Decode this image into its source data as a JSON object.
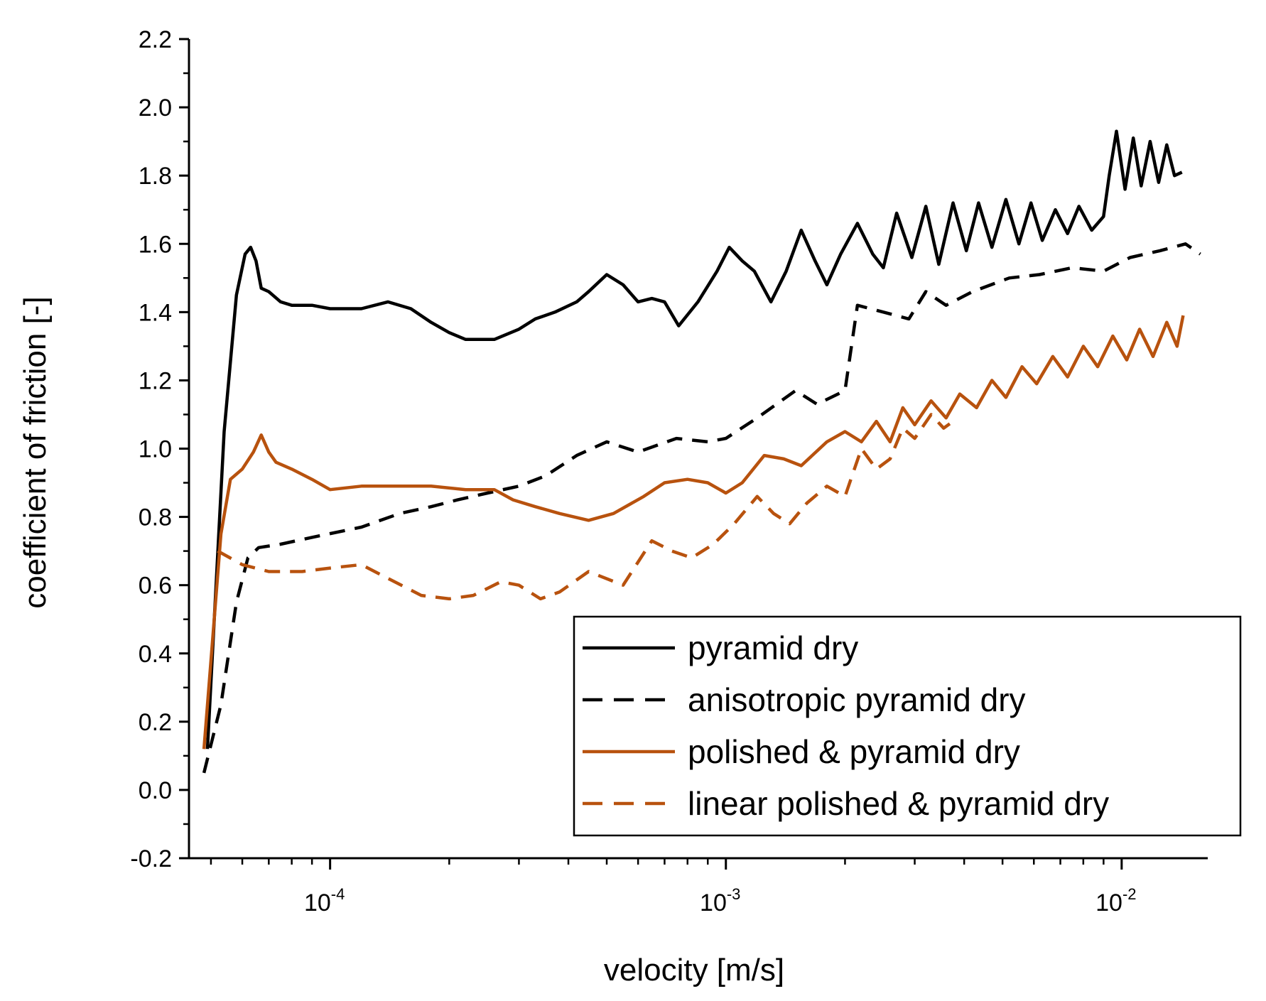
{
  "chart_data": {
    "type": "line",
    "title": "",
    "xlabel": "velocity [m/s]",
    "ylabel": "coefficient of friction [-]",
    "xscale": "log",
    "xlim": [
      4.4e-05,
      0.0165
    ],
    "ylim": [
      -0.2,
      2.2
    ],
    "yticks": [
      "-0.2",
      "0.0",
      "0.2",
      "0.4",
      "0.6",
      "0.8",
      "1.0",
      "1.2",
      "1.4",
      "1.6",
      "1.8",
      "2.0",
      "2.2"
    ],
    "xticks": [
      {
        "value": 0.0001,
        "base": "10",
        "exp": "-4"
      },
      {
        "value": 0.001,
        "base": "10",
        "exp": "-3"
      },
      {
        "value": 0.01,
        "base": "10",
        "exp": "-2"
      }
    ],
    "legend_position": "bottom-right",
    "series": [
      {
        "name": "pyramid dry",
        "color": "#000000",
        "dash": "solid",
        "points": [
          [
            4.9e-05,
            0.12
          ],
          [
            5.4e-05,
            1.05
          ],
          [
            5.8e-05,
            1.45
          ],
          [
            6.1e-05,
            1.57
          ],
          [
            6.3e-05,
            1.59
          ],
          [
            6.5e-05,
            1.55
          ],
          [
            6.7e-05,
            1.47
          ],
          [
            7e-05,
            1.46
          ],
          [
            7.5e-05,
            1.43
          ],
          [
            8e-05,
            1.42
          ],
          [
            9e-05,
            1.42
          ],
          [
            0.0001,
            1.41
          ],
          [
            0.00012,
            1.41
          ],
          [
            0.00014,
            1.43
          ],
          [
            0.00016,
            1.41
          ],
          [
            0.00018,
            1.37
          ],
          [
            0.0002,
            1.34
          ],
          [
            0.00022,
            1.32
          ],
          [
            0.00026,
            1.32
          ],
          [
            0.0003,
            1.35
          ],
          [
            0.00033,
            1.38
          ],
          [
            0.00037,
            1.4
          ],
          [
            0.00042,
            1.43
          ],
          [
            0.00045,
            1.46
          ],
          [
            0.0005,
            1.51
          ],
          [
            0.00055,
            1.48
          ],
          [
            0.0006,
            1.43
          ],
          [
            0.00065,
            1.44
          ],
          [
            0.0007,
            1.43
          ],
          [
            0.00076,
            1.36
          ],
          [
            0.00085,
            1.43
          ],
          [
            0.00095,
            1.52
          ],
          [
            0.00102,
            1.59
          ],
          [
            0.0011,
            1.55
          ],
          [
            0.00118,
            1.52
          ],
          [
            0.0013,
            1.43
          ],
          [
            0.00142,
            1.52
          ],
          [
            0.00155,
            1.64
          ],
          [
            0.00168,
            1.55
          ],
          [
            0.0018,
            1.48
          ],
          [
            0.00195,
            1.57
          ],
          [
            0.00215,
            1.66
          ],
          [
            0.00235,
            1.57
          ],
          [
            0.0025,
            1.53
          ],
          [
            0.0027,
            1.69
          ],
          [
            0.00295,
            1.56
          ],
          [
            0.0032,
            1.71
          ],
          [
            0.00345,
            1.54
          ],
          [
            0.00375,
            1.72
          ],
          [
            0.00405,
            1.58
          ],
          [
            0.00435,
            1.72
          ],
          [
            0.0047,
            1.59
          ],
          [
            0.0051,
            1.73
          ],
          [
            0.0055,
            1.6
          ],
          [
            0.0059,
            1.72
          ],
          [
            0.0063,
            1.61
          ],
          [
            0.0068,
            1.7
          ],
          [
            0.0073,
            1.63
          ],
          [
            0.0078,
            1.71
          ],
          [
            0.0084,
            1.64
          ],
          [
            0.009,
            1.68
          ],
          [
            0.0093,
            1.8
          ],
          [
            0.0097,
            1.93
          ],
          [
            0.0102,
            1.76
          ],
          [
            0.0107,
            1.91
          ],
          [
            0.0112,
            1.77
          ],
          [
            0.0118,
            1.9
          ],
          [
            0.0124,
            1.78
          ],
          [
            0.013,
            1.89
          ],
          [
            0.0136,
            1.8
          ],
          [
            0.0142,
            1.81
          ]
        ]
      },
      {
        "name": "anisotropic pyramid dry",
        "color": "#000000",
        "dash": "dashed",
        "points": [
          [
            4.8e-05,
            0.05
          ],
          [
            5.3e-05,
            0.25
          ],
          [
            5.8e-05,
            0.55
          ],
          [
            6.2e-05,
            0.68
          ],
          [
            6.6e-05,
            0.71
          ],
          [
            7.5e-05,
            0.72
          ],
          [
            9e-05,
            0.74
          ],
          [
            0.00012,
            0.77
          ],
          [
            0.00015,
            0.81
          ],
          [
            0.00018,
            0.83
          ],
          [
            0.00021,
            0.85
          ],
          [
            0.00025,
            0.87
          ],
          [
            0.0003,
            0.89
          ],
          [
            0.00035,
            0.92
          ],
          [
            0.00042,
            0.98
          ],
          [
            0.0005,
            1.02
          ],
          [
            0.0006,
            0.99
          ],
          [
            0.00075,
            1.03
          ],
          [
            0.0009,
            1.02
          ],
          [
            0.001,
            1.03
          ],
          [
            0.0012,
            1.09
          ],
          [
            0.0015,
            1.17
          ],
          [
            0.0017,
            1.13
          ],
          [
            0.002,
            1.17
          ],
          [
            0.00215,
            1.42
          ],
          [
            0.0025,
            1.4
          ],
          [
            0.0029,
            1.38
          ],
          [
            0.0032,
            1.46
          ],
          [
            0.0036,
            1.42
          ],
          [
            0.0042,
            1.46
          ],
          [
            0.0052,
            1.5
          ],
          [
            0.0062,
            1.51
          ],
          [
            0.0075,
            1.53
          ],
          [
            0.009,
            1.52
          ],
          [
            0.0105,
            1.56
          ],
          [
            0.0125,
            1.58
          ],
          [
            0.0145,
            1.6
          ],
          [
            0.0158,
            1.57
          ]
        ]
      },
      {
        "name": "polished & pyramid dry",
        "color": "#b8520e",
        "dash": "solid",
        "points": [
          [
            4.8e-05,
            0.12
          ],
          [
            5.3e-05,
            0.75
          ],
          [
            5.6e-05,
            0.91
          ],
          [
            6e-05,
            0.94
          ],
          [
            6.4e-05,
            0.99
          ],
          [
            6.7e-05,
            1.04
          ],
          [
            7e-05,
            0.99
          ],
          [
            7.3e-05,
            0.96
          ],
          [
            8e-05,
            0.94
          ],
          [
            9e-05,
            0.91
          ],
          [
            0.0001,
            0.88
          ],
          [
            0.00012,
            0.89
          ],
          [
            0.00015,
            0.89
          ],
          [
            0.00018,
            0.89
          ],
          [
            0.00022,
            0.88
          ],
          [
            0.00026,
            0.88
          ],
          [
            0.00029,
            0.85
          ],
          [
            0.00033,
            0.83
          ],
          [
            0.00038,
            0.81
          ],
          [
            0.00045,
            0.79
          ],
          [
            0.00052,
            0.81
          ],
          [
            0.00062,
            0.86
          ],
          [
            0.0007,
            0.9
          ],
          [
            0.0008,
            0.91
          ],
          [
            0.0009,
            0.9
          ],
          [
            0.001,
            0.87
          ],
          [
            0.0011,
            0.9
          ],
          [
            0.00125,
            0.98
          ],
          [
            0.0014,
            0.97
          ],
          [
            0.00155,
            0.95
          ],
          [
            0.0018,
            1.02
          ],
          [
            0.002,
            1.05
          ],
          [
            0.0022,
            1.02
          ],
          [
            0.0024,
            1.08
          ],
          [
            0.0026,
            1.02
          ],
          [
            0.0028,
            1.12
          ],
          [
            0.003,
            1.07
          ],
          [
            0.0033,
            1.14
          ],
          [
            0.0036,
            1.09
          ],
          [
            0.0039,
            1.16
          ],
          [
            0.0043,
            1.12
          ],
          [
            0.0047,
            1.2
          ],
          [
            0.0051,
            1.15
          ],
          [
            0.0056,
            1.24
          ],
          [
            0.0061,
            1.19
          ],
          [
            0.0067,
            1.27
          ],
          [
            0.0073,
            1.21
          ],
          [
            0.008,
            1.3
          ],
          [
            0.0087,
            1.24
          ],
          [
            0.0095,
            1.33
          ],
          [
            0.0103,
            1.26
          ],
          [
            0.0111,
            1.35
          ],
          [
            0.012,
            1.27
          ],
          [
            0.013,
            1.37
          ],
          [
            0.0138,
            1.3
          ],
          [
            0.0143,
            1.39
          ]
        ]
      },
      {
        "name": "linear polished & pyramid dry",
        "color": "#b8520e",
        "dash": "dashed",
        "points": [
          [
            5.2e-05,
            0.7
          ],
          [
            6e-05,
            0.66
          ],
          [
            7e-05,
            0.64
          ],
          [
            8.5e-05,
            0.64
          ],
          [
            0.0001,
            0.65
          ],
          [
            0.00012,
            0.66
          ],
          [
            0.00014,
            0.62
          ],
          [
            0.00017,
            0.57
          ],
          [
            0.0002,
            0.56
          ],
          [
            0.00023,
            0.57
          ],
          [
            0.00027,
            0.61
          ],
          [
            0.0003,
            0.6
          ],
          [
            0.00034,
            0.56
          ],
          [
            0.00038,
            0.58
          ],
          [
            0.00045,
            0.64
          ],
          [
            0.00055,
            0.6
          ],
          [
            0.00065,
            0.73
          ],
          [
            0.00073,
            0.7
          ],
          [
            0.00082,
            0.68
          ],
          [
            0.00093,
            0.72
          ],
          [
            0.00105,
            0.78
          ],
          [
            0.0012,
            0.86
          ],
          [
            0.00132,
            0.81
          ],
          [
            0.00145,
            0.78
          ],
          [
            0.0016,
            0.84
          ],
          [
            0.0018,
            0.89
          ],
          [
            0.002,
            0.86
          ],
          [
            0.0022,
            1.0
          ],
          [
            0.0024,
            0.94
          ],
          [
            0.0026,
            0.97
          ],
          [
            0.0028,
            1.06
          ],
          [
            0.003,
            1.03
          ],
          [
            0.0033,
            1.1
          ],
          [
            0.00355,
            1.06
          ],
          [
            0.00375,
            1.08
          ]
        ]
      }
    ]
  }
}
